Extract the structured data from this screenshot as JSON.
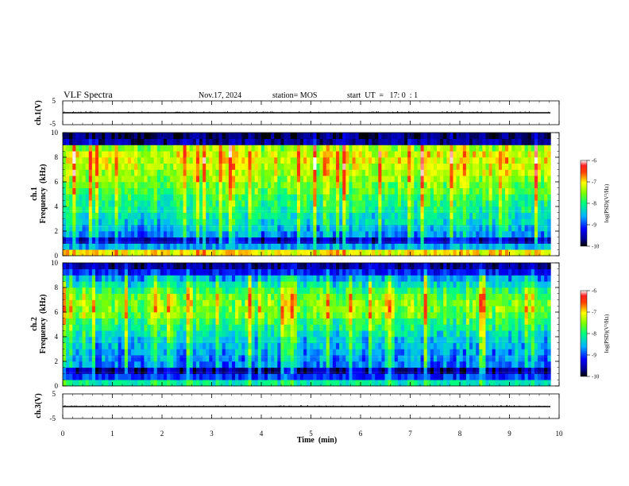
{
  "header": {
    "title": "VLF Spectra",
    "date": "Nov.17, 2024",
    "station": "station= MOS",
    "start": "start  UT  =   17: 0  : 1"
  },
  "chart_data": [
    {
      "type": "line",
      "panel": "ch1-waveform",
      "ylabel": "ch.1(V)",
      "ylim": [
        -5,
        5
      ],
      "yticks": [
        "5",
        "-5"
      ],
      "xlim": [
        0,
        10
      ],
      "series": [
        {
          "values": [
            0.1,
            0.1,
            0.1,
            0.1,
            0.1,
            0.1,
            0.1,
            0.1,
            0.1,
            0.1
          ]
        }
      ]
    },
    {
      "type": "heatmap",
      "panel": "ch1-spectrogram",
      "ylabel_line1": "ch.1",
      "ylabel_line2": "Frequency  (kHz)",
      "ylim": [
        0,
        10
      ],
      "yticks": [
        "0",
        "2",
        "4",
        "6",
        "8",
        "10"
      ],
      "xlim": [
        0,
        9.83
      ],
      "colorbar": {
        "label": "log(PSD)(V²/Hz)",
        "range": [
          -10,
          -6
        ],
        "ticks": [
          "-6",
          "-7",
          "-8",
          "-9",
          "-10"
        ],
        "colormap": "jet"
      },
      "freq_profile_khz": [
        0.5,
        1.0,
        1.5,
        2.0,
        2.5,
        3.0,
        3.5,
        4.0,
        4.5,
        5.0,
        5.5,
        6.0,
        6.5,
        7.0,
        7.5,
        8.0,
        8.5,
        9.0,
        9.5,
        10.0
      ],
      "mean_log_psd": [
        -7.0,
        -8.7,
        -9.6,
        -8.8,
        -8.6,
        -8.4,
        -8.3,
        -8.1,
        -8.0,
        -7.9,
        -7.7,
        -7.6,
        -7.4,
        -7.3,
        -7.2,
        -7.1,
        -7.1,
        -7.4,
        -9.8,
        -10.0
      ]
    },
    {
      "type": "heatmap",
      "panel": "ch2-spectrogram",
      "ylabel_line1": "ch.2",
      "ylabel_line2": "Frequency  (kHz)",
      "ylim": [
        0,
        10
      ],
      "yticks": [
        "0",
        "2",
        "4",
        "6",
        "8",
        "10"
      ],
      "xlim": [
        0,
        9.83
      ],
      "colorbar": {
        "label": "log(PSD)(V²/Hz)",
        "range": [
          -10,
          -6
        ],
        "ticks": [
          "-6",
          "-7",
          "-8",
          "-9",
          "-10"
        ],
        "colormap": "jet"
      },
      "freq_profile_khz": [
        0.5,
        1.0,
        1.5,
        2.0,
        2.5,
        3.0,
        3.5,
        4.0,
        4.5,
        5.0,
        5.5,
        6.0,
        6.5,
        7.0,
        7.5,
        8.0,
        8.5,
        9.0,
        9.5,
        10.0
      ],
      "mean_log_psd": [
        -8.2,
        -9.2,
        -9.8,
        -8.9,
        -8.8,
        -8.7,
        -8.6,
        -8.5,
        -8.3,
        -8.1,
        -7.9,
        -7.6,
        -7.5,
        -7.5,
        -7.6,
        -7.9,
        -8.3,
        -8.7,
        -9.3,
        -9.8
      ]
    },
    {
      "type": "line",
      "panel": "ch3-waveform",
      "ylabel": "ch.3(V)",
      "ylim": [
        -5,
        5
      ],
      "yticks": [
        "5",
        "-5"
      ],
      "xlim": [
        0,
        10
      ],
      "xticks": [
        "0",
        "1",
        "2",
        "3",
        "4",
        "5",
        "6",
        "7",
        "8",
        "9",
        "10"
      ],
      "xlabel": "Time  (min)",
      "series": [
        {
          "values": [
            0.0,
            0.0,
            0.0,
            0.0,
            0.0,
            0.0,
            0.0,
            0.0,
            0.0,
            0.0
          ]
        }
      ]
    }
  ]
}
